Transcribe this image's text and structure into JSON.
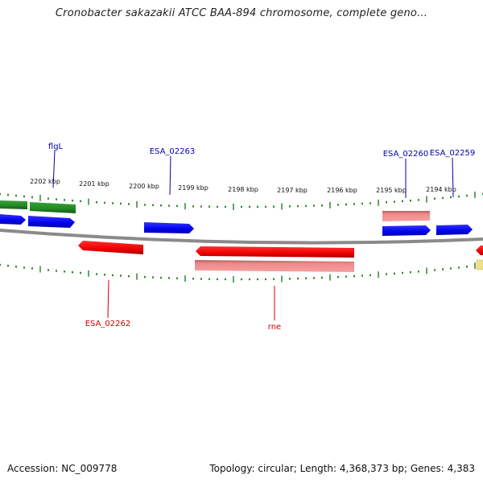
{
  "header": {
    "title": "Cronobacter sakazakii ATCC BAA-894 chromosome, complete geno..."
  },
  "footer": {
    "accession": "Accession: NC_009778",
    "summary": "Topology: circular; Length: 4,368,373 bp; Genes: 4,383"
  },
  "ruler": {
    "ticks": [
      "2202 kbp",
      "2201 kbp",
      "2200 kbp",
      "2199 kbp",
      "2198 kbp",
      "2197 kbp",
      "2196 kbp",
      "2195 kbp",
      "2194 kbp"
    ]
  },
  "genes_forward": [
    {
      "name": "flgL",
      "color": "#0000aa"
    },
    {
      "name": "ESA_02263",
      "color": "#0000aa"
    },
    {
      "name": "ESA_02260",
      "color": "#0000aa"
    },
    {
      "name": "ESA_02259",
      "color": "#0000aa"
    }
  ],
  "genes_reverse": [
    {
      "name": "ESA_02262",
      "color": "#cc0000"
    },
    {
      "name": "rne",
      "color": "#cc0000"
    }
  ],
  "colors": {
    "forward_gene": "#1a1aff",
    "reverse_gene": "#ff1a1a",
    "pseudo_reverse": "#f08080",
    "operon": "#2e8b2e",
    "backbone": "#808080",
    "tick": "#2a8a2a",
    "misc_feature": "#f0e08a"
  }
}
